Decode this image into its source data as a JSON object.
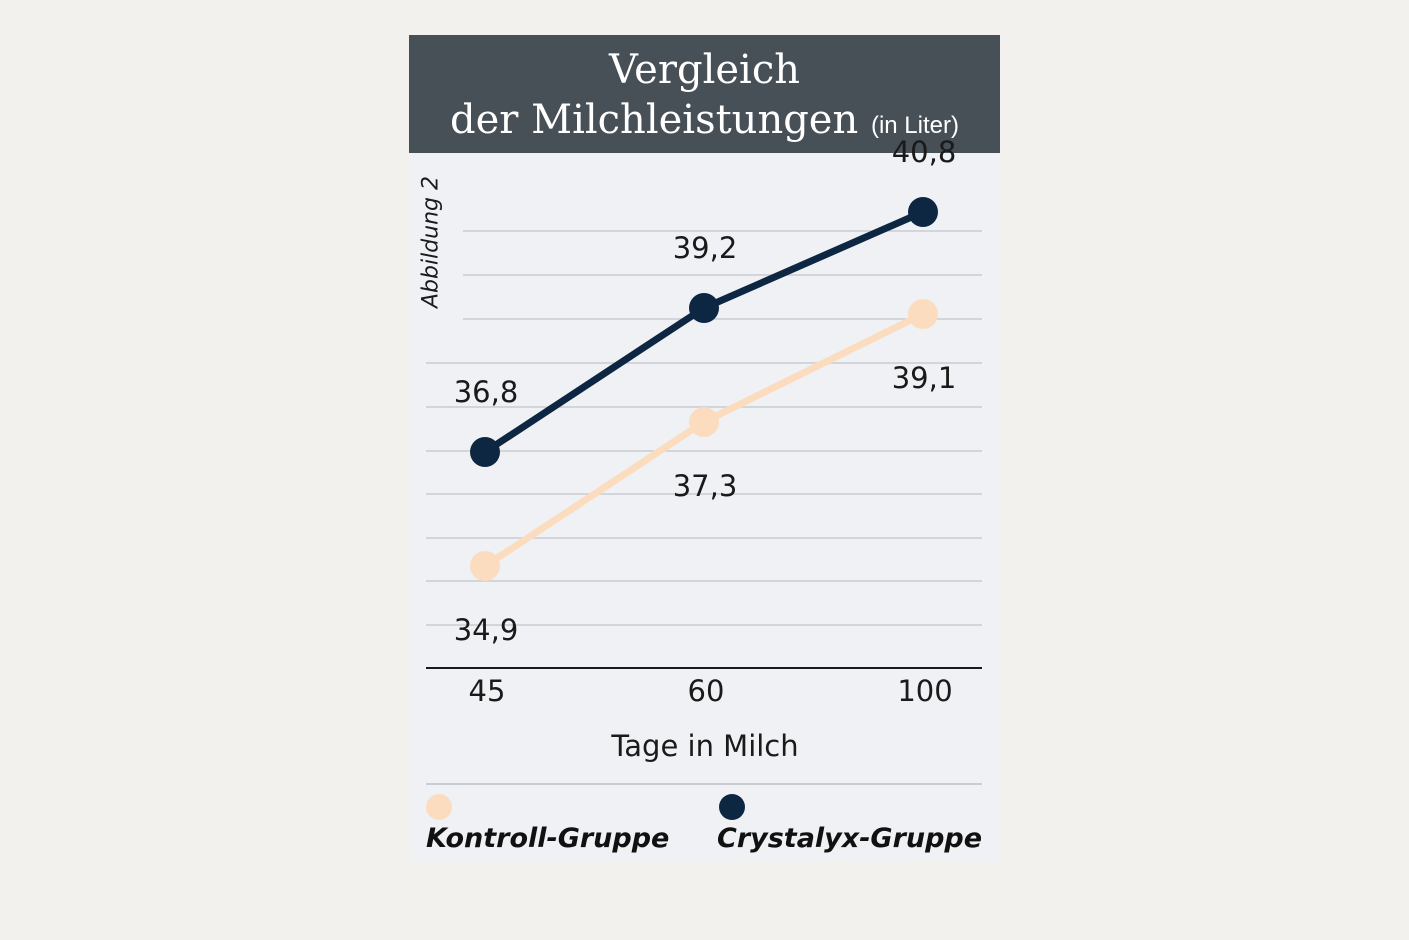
{
  "header": {
    "title_line1": "Vergleich",
    "title_line2": "der Milchleistungen",
    "title_unit": "(in Liter)"
  },
  "figure_label": "Abbildung 2",
  "chart_data": {
    "type": "line",
    "title": "Vergleich der Milchleistungen (in Liter)",
    "xlabel": "Tage in Milch",
    "ylabel": "",
    "categories": [
      "45",
      "60",
      "100"
    ],
    "ylim": [
      33.2,
      41.2
    ],
    "grid": true,
    "legend_position": "bottom",
    "series": [
      {
        "name": "Kontroll-Gruppe",
        "values": [
          34.9,
          37.3,
          39.1
        ],
        "labels": [
          "34,9",
          "37,3",
          "39,1"
        ],
        "color": "#fcdcbf"
      },
      {
        "name": "Crystalyx-Gruppe",
        "values": [
          36.8,
          39.2,
          40.8
        ],
        "labels": [
          "36,8",
          "39,2",
          "40,8"
        ],
        "color": "#0d2642"
      }
    ]
  },
  "colors": {
    "header_bg": "#474f57",
    "panel_bg": "#eff1f4",
    "page_bg": "#f3f1ed",
    "grid": "#c9ccd1",
    "axis": "#1a1a1a"
  }
}
